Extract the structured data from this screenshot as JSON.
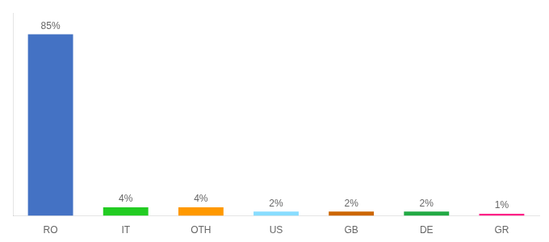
{
  "chart_data": {
    "type": "bar",
    "categories": [
      "RO",
      "IT",
      "OTH",
      "US",
      "GB",
      "DE",
      "GR"
    ],
    "values": [
      85,
      4,
      4,
      2,
      2,
      2,
      1
    ],
    "value_labels": [
      "85%",
      "4%",
      "4%",
      "2%",
      "2%",
      "2%",
      "1%"
    ],
    "colors": [
      "#4472c4",
      "#22cc22",
      "#ff9900",
      "#88ddff",
      "#cc6600",
      "#22aa44",
      "#ff2288"
    ],
    "ylim": [
      0,
      95
    ],
    "grid": false,
    "data_labels": true,
    "tick_labels": "x"
  }
}
